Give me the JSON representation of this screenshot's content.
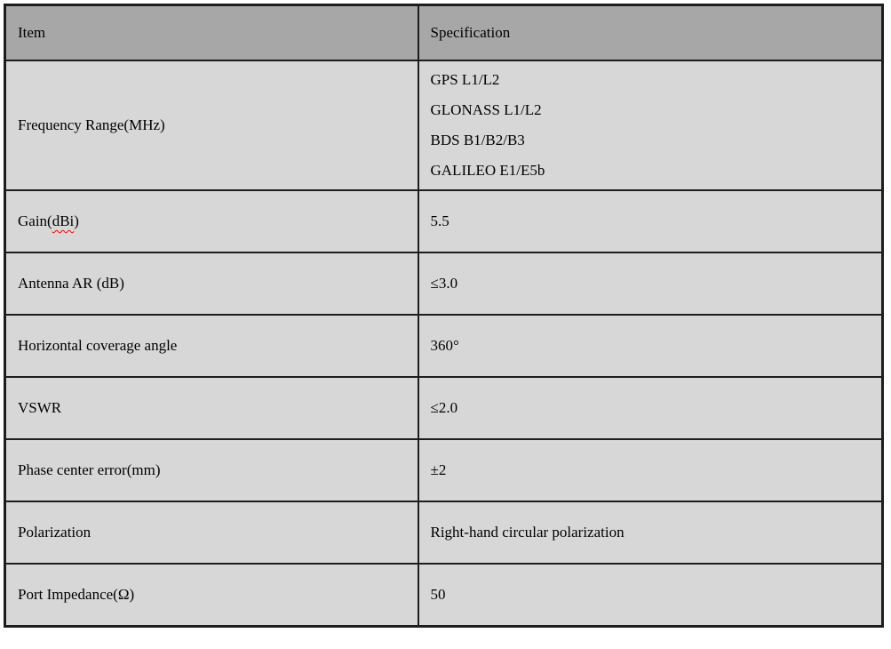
{
  "theme": {
    "page_bg": "#ffffff",
    "header_bg": "#a7a7a7",
    "row_bg": "#d7d7d7",
    "border_color": "#1d1d1d",
    "text_color": "#000000",
    "squiggle_color": "#ff0000"
  },
  "table": {
    "columns": [
      {
        "label": "Item"
      },
      {
        "label": "Specification"
      }
    ],
    "rows": [
      {
        "item_parts": [
          {
            "text": "Frequency Range(MHz)"
          }
        ],
        "spec_lines": [
          "GPS L1/L2",
          "GLONASS L1/L2",
          "BDS B1/B2/B3",
          "GALILEO E1/E5b"
        ]
      },
      {
        "item_parts": [
          {
            "text": "Gain("
          },
          {
            "text": "dBi",
            "squiggle": true
          },
          {
            "text": ")"
          }
        ],
        "spec_lines": [
          "5.5"
        ]
      },
      {
        "item_parts": [
          {
            "text": "Antenna AR (dB)"
          }
        ],
        "spec_lines": [
          "≤3.0"
        ]
      },
      {
        "item_parts": [
          {
            "text": "Horizontal coverage angle"
          }
        ],
        "spec_lines": [
          "360°"
        ]
      },
      {
        "item_parts": [
          {
            "text": "VSWR"
          }
        ],
        "spec_lines": [
          "≤2.0"
        ]
      },
      {
        "item_parts": [
          {
            "text": "Phase center error(mm)"
          }
        ],
        "spec_lines": [
          "±2"
        ]
      },
      {
        "item_parts": [
          {
            "text": "Polarization"
          }
        ],
        "spec_lines": [
          "Right-hand circular polarization"
        ]
      },
      {
        "item_parts": [
          {
            "text": "Port Impedance(Ω)"
          }
        ],
        "spec_lines": [
          "50"
        ]
      }
    ]
  }
}
